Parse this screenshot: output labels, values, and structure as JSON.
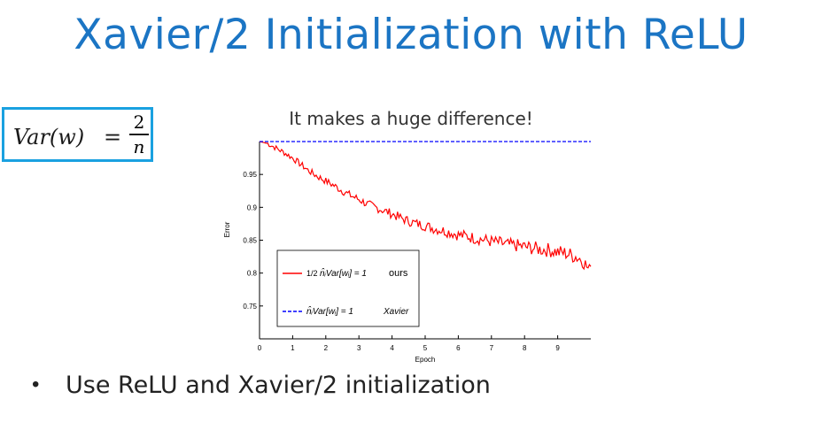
{
  "slide": {
    "title": "Xavier/2 Initialization with ReLU",
    "bullet": "Use ReLU and Xavier/2 initialization"
  },
  "formula": {
    "lhs": "Var(w)",
    "eq": "=",
    "numerator": "2",
    "denominator": "n"
  },
  "colors": {
    "title": "#1b75c4",
    "formula_border": "#1aa1e0",
    "ours_series": "#ff0000",
    "xavier_series": "#0000ff"
  },
  "chart_data": {
    "type": "line",
    "title": "It makes a huge difference!",
    "xlabel": "Epoch",
    "ylabel": "Error",
    "xlim": [
      0,
      10
    ],
    "ylim": [
      0.7,
      1.0
    ],
    "xticks": [
      0,
      1,
      2,
      3,
      4,
      5,
      6,
      7,
      8,
      9
    ],
    "yticks": [
      0.75,
      0.8,
      0.85,
      0.9,
      0.95
    ],
    "ytick_labels": [
      "0.75",
      "0.8",
      "0.85",
      "0.9",
      "0.95"
    ],
    "grid": false,
    "legend_position": "lower-left",
    "series": [
      {
        "name": "½ n̂ᵢVar[wᵢ] = 1  ours",
        "legend_prefix": "1/2",
        "legend_text": "n̂ᵢVar[wᵢ] = 1",
        "legend_tag": "ours",
        "style": "solid",
        "color": "#ff0000",
        "x": [
          0,
          0.25,
          0.5,
          0.75,
          1,
          1.25,
          1.5,
          1.75,
          2,
          2.25,
          2.5,
          2.75,
          3,
          3.25,
          3.5,
          3.75,
          4,
          4.25,
          4.5,
          4.75,
          5,
          5.25,
          5.5,
          5.75,
          6,
          6.25,
          6.5,
          6.75,
          7,
          7.25,
          7.5,
          7.75,
          8,
          8.25,
          8.5,
          8.75,
          9,
          9.25,
          9.5,
          9.75,
          10
        ],
        "values": [
          1.0,
          0.997,
          0.99,
          0.983,
          0.975,
          0.965,
          0.955,
          0.947,
          0.94,
          0.933,
          0.925,
          0.918,
          0.912,
          0.905,
          0.9,
          0.895,
          0.89,
          0.884,
          0.879,
          0.875,
          0.872,
          0.868,
          0.865,
          0.862,
          0.858,
          0.856,
          0.853,
          0.851,
          0.848,
          0.846,
          0.843,
          0.842,
          0.84,
          0.838,
          0.836,
          0.835,
          0.832,
          0.83,
          0.826,
          0.82,
          0.8
        ]
      },
      {
        "name": "n̂ᵢVar[wᵢ] = 1  Xavier",
        "legend_text": "n̂ᵢVar[wᵢ] = 1",
        "legend_tag": "Xavier",
        "style": "dashed",
        "color": "#0000ff",
        "x": [
          0,
          10
        ],
        "values": [
          1.0,
          1.0
        ]
      }
    ]
  }
}
